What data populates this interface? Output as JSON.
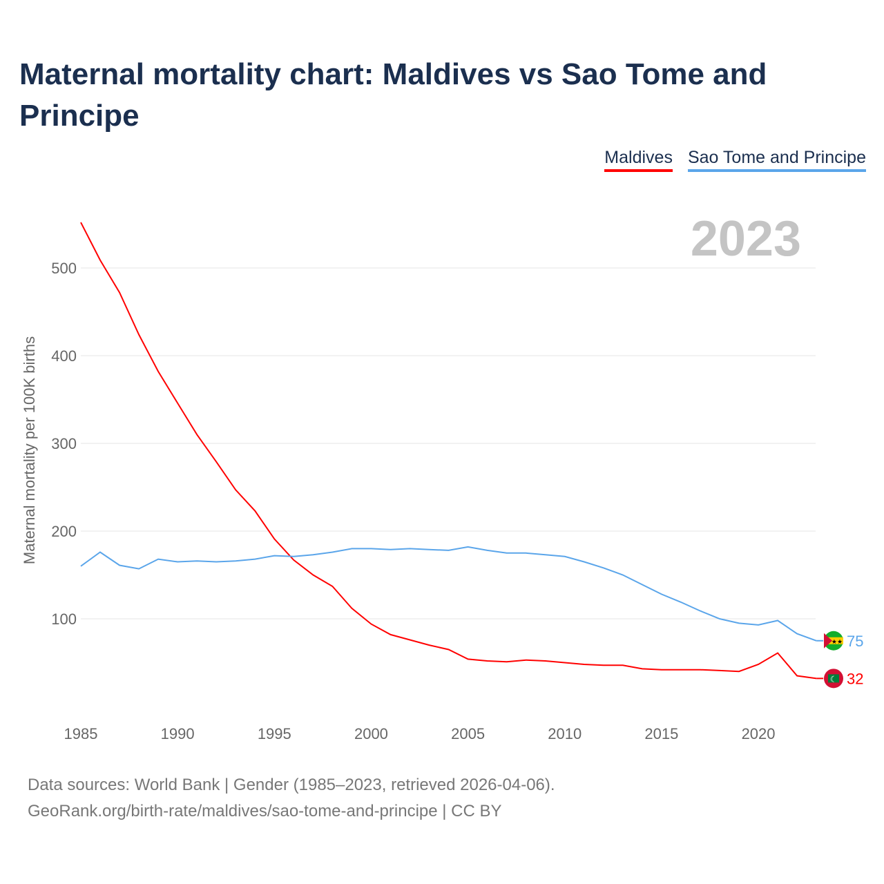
{
  "title": "Maternal mortality chart: Maldives vs Sao Tome and Principe",
  "source_line1": "Data sources: World Bank | Gender (1985–2023, retrieved 2026-04-06).",
  "source_line2": "GeoRank.org/birth-rate/maldives/sao-tome-and-principe | CC BY",
  "chart_data": {
    "type": "line",
    "title": "Maternal mortality chart: Maldives vs Sao Tome and Principe",
    "ylabel": "Maternal mortality per 100K births",
    "xlabel": "",
    "year_label": "2023",
    "xlim": [
      1985,
      2023
    ],
    "ylim": [
      0,
      560
    ],
    "xticks": [
      1985,
      1990,
      1995,
      2000,
      2005,
      2010,
      2015,
      2020
    ],
    "yticks": [
      100,
      200,
      300,
      400,
      500
    ],
    "grid": true,
    "legend_position": "top-right",
    "x": [
      1985,
      1986,
      1987,
      1988,
      1989,
      1990,
      1991,
      1992,
      1993,
      1994,
      1995,
      1996,
      1997,
      1998,
      1999,
      2000,
      2001,
      2002,
      2003,
      2004,
      2005,
      2006,
      2007,
      2008,
      2009,
      2010,
      2011,
      2012,
      2013,
      2014,
      2015,
      2016,
      2017,
      2018,
      2019,
      2020,
      2021,
      2022,
      2023
    ],
    "series": [
      {
        "name": "Maldives",
        "color": "#ff0000",
        "end_label": "32",
        "values": [
          552,
          509,
          472,
          424,
          382,
          346,
          310,
          279,
          247,
          223,
          191,
          167,
          150,
          137,
          112,
          94,
          82,
          76,
          70,
          65,
          54,
          52,
          51,
          53,
          52,
          50,
          48,
          47,
          47,
          43,
          42,
          42,
          42,
          41,
          40,
          48,
          61,
          35,
          32
        ]
      },
      {
        "name": "Sao Tome and Principe",
        "color": "#5aa5ea",
        "end_label": "75",
        "values": [
          160,
          176,
          161,
          157,
          168,
          165,
          166,
          165,
          166,
          168,
          172,
          171,
          173,
          176,
          180,
          180,
          179,
          180,
          179,
          178,
          182,
          178,
          175,
          175,
          173,
          171,
          165,
          158,
          150,
          139,
          128,
          119,
          109,
          100,
          95,
          93,
          98,
          83,
          75
        ]
      }
    ]
  }
}
